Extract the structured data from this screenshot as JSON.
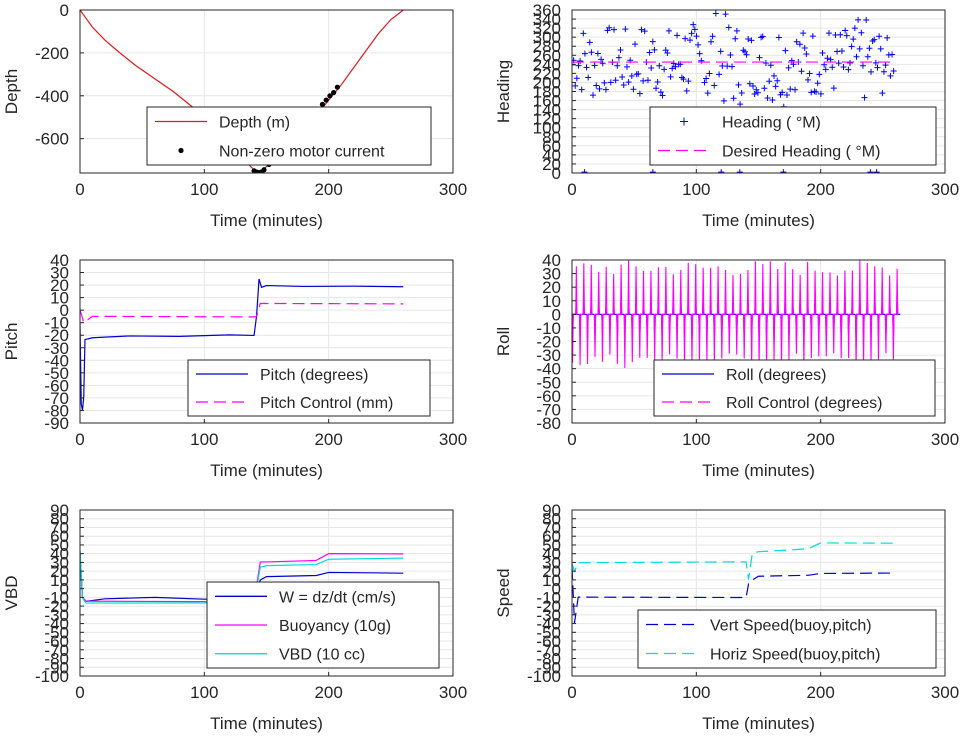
{
  "chart_data": [
    {
      "type": "line",
      "ylabel": "Depth",
      "xlabel": "Time (minutes)",
      "xlim": [
        0,
        300
      ],
      "ylim": [
        -760,
        0
      ],
      "xticks": [
        0,
        100,
        200,
        300
      ],
      "yticks": [
        -600,
        -400,
        -200,
        0
      ],
      "grid": true,
      "legend_position": "bottom-right",
      "series": [
        {
          "name": "Depth (m)",
          "style": "solid",
          "color": "#e31a1c",
          "x": [
            0,
            5,
            10,
            20,
            30,
            45,
            60,
            75,
            90,
            100,
            110,
            120,
            130,
            140,
            143,
            147,
            152,
            160,
            170,
            180,
            190,
            200,
            210,
            220,
            230,
            240,
            250,
            260
          ],
          "y": [
            0,
            -40,
            -80,
            -140,
            -190,
            -260,
            -320,
            -380,
            -450,
            -500,
            -560,
            -630,
            -690,
            -745,
            -755,
            -745,
            -720,
            -680,
            -620,
            -560,
            -495,
            -420,
            -350,
            -270,
            -190,
            -110,
            -45,
            0
          ]
        },
        {
          "name": "Non-zero motor current",
          "style": "dots",
          "color": "#000000",
          "x": [
            140,
            142,
            144,
            146,
            148,
            152,
            195,
            198,
            201,
            204,
            207
          ],
          "y": [
            -750,
            -755,
            -758,
            -755,
            -745,
            -720,
            -440,
            -420,
            -400,
            -385,
            -360
          ]
        }
      ]
    },
    {
      "type": "scatter",
      "ylabel": "Heading",
      "xlabel": "Time (minutes)",
      "xlim": [
        0,
        300
      ],
      "ylim": [
        0,
        360
      ],
      "xticks": [
        0,
        100,
        200,
        300
      ],
      "yticks": [
        0,
        20,
        40,
        60,
        80,
        100,
        120,
        140,
        160,
        180,
        200,
        220,
        240,
        260,
        280,
        300,
        320,
        340,
        360
      ],
      "grid": true,
      "legend_position": "bottom-right",
      "series": [
        {
          "name": "Heading ( °M)",
          "style": "plus",
          "color": "#0000ff",
          "x": [
            0,
            10,
            20,
            30,
            40,
            50,
            60,
            70,
            80,
            90,
            100,
            110,
            120,
            130,
            140,
            150,
            160,
            170,
            180,
            190,
            200,
            210,
            220,
            230,
            240,
            250,
            260
          ],
          "y": [
            240,
            250,
            235,
            255,
            245,
            240,
            250,
            245,
            240,
            255,
            230,
            245,
            250,
            240,
            235,
            250,
            240,
            245,
            255,
            240,
            250,
            245,
            240,
            250,
            245,
            240,
            250
          ],
          "spread": [
            60,
            80,
            80,
            70,
            75,
            80,
            85,
            80,
            80,
            90,
            100,
            120,
            110,
            100,
            80,
            75,
            90,
            100,
            70,
            75,
            80,
            75,
            80,
            90,
            100,
            70,
            30
          ]
        },
        {
          "name": "Desired Heading ( °M)",
          "style": "dash",
          "color": "#ff00ff",
          "x": [
            0,
            260
          ],
          "y": [
            245,
            245
          ]
        }
      ]
    },
    {
      "type": "line",
      "ylabel": "Pitch",
      "xlabel": "Time (minutes)",
      "xlim": [
        0,
        300
      ],
      "ylim": [
        -90,
        40
      ],
      "xticks": [
        0,
        100,
        200,
        300
      ],
      "yticks": [
        -90,
        -80,
        -70,
        -60,
        -50,
        -40,
        -30,
        -20,
        -10,
        0,
        10,
        20,
        30,
        40
      ],
      "grid": true,
      "legend_position": "bottom-right",
      "series": [
        {
          "name": "Pitch (degrees)",
          "style": "solid",
          "color": "#0000cc",
          "x": [
            0,
            1,
            2,
            3,
            4,
            10,
            40,
            80,
            120,
            140,
            142,
            144,
            146,
            150,
            180,
            220,
            260
          ],
          "y": [
            -10,
            -75,
            -80,
            -70,
            -23,
            -22,
            -21,
            -21,
            -20,
            -20,
            -5,
            25,
            18,
            20,
            19,
            19,
            19
          ]
        },
        {
          "name": "Pitch Control (mm)",
          "style": "dash",
          "color": "#ff00ff",
          "x": [
            0,
            3,
            10,
            140,
            142,
            145,
            150,
            260
          ],
          "y": [
            0,
            -10,
            -5,
            -5,
            -5,
            5,
            5,
            5
          ]
        }
      ]
    },
    {
      "type": "line",
      "ylabel": "Roll",
      "xlabel": "Time (minutes)",
      "xlim": [
        0,
        300
      ],
      "ylim": [
        -80,
        40
      ],
      "xticks": [
        0,
        100,
        200,
        300
      ],
      "yticks": [
        -80,
        -70,
        -60,
        -50,
        -40,
        -30,
        -20,
        -10,
        0,
        10,
        20,
        30,
        40
      ],
      "grid": true,
      "legend_position": "bottom-right",
      "series": [
        {
          "name": "Roll (degrees)",
          "style": "solid",
          "color": "#0000cc",
          "x": [
            0,
            260
          ],
          "y": [
            0,
            0
          ],
          "amplitude": 20,
          "period": 6
        },
        {
          "name": "Roll Control (degrees)",
          "style": "dash",
          "color": "#ff00ff",
          "x": [
            0,
            260
          ],
          "y": [
            0,
            0
          ],
          "amplitude": 40,
          "period": 6
        }
      ]
    },
    {
      "type": "line",
      "ylabel": "VBD",
      "xlabel": "Time (minutes)",
      "xlim": [
        0,
        300
      ],
      "ylim": [
        -100,
        90
      ],
      "xticks": [
        0,
        100,
        200,
        300
      ],
      "yticks": [
        -100,
        -90,
        -80,
        -70,
        -60,
        -50,
        -40,
        -30,
        -20,
        -10,
        0,
        10,
        20,
        30,
        40,
        50,
        60,
        70,
        80,
        90
      ],
      "grid": true,
      "legend_position": "bottom-right",
      "series": [
        {
          "name": "W = dz/dt (cm/s)",
          "style": "solid",
          "color": "#0000cc",
          "x": [
            0,
            2,
            4,
            20,
            60,
            100,
            140,
            145,
            150,
            190,
            200,
            260
          ],
          "y": [
            40,
            -10,
            -15,
            -12,
            -10,
            -12,
            -12,
            10,
            14,
            15,
            18,
            17
          ]
        },
        {
          "name": "Buoyancy (10g)",
          "style": "solid",
          "color": "#ff00ff",
          "x": [
            0,
            2,
            5,
            140,
            145,
            150,
            190,
            200,
            260
          ],
          "y": [
            40,
            -10,
            -15,
            -15,
            30,
            30,
            32,
            40,
            40
          ]
        },
        {
          "name": "VBD (10 cc)",
          "style": "solid",
          "color": "#00dddd",
          "x": [
            0,
            2,
            5,
            140,
            145,
            150,
            190,
            200,
            260
          ],
          "y": [
            45,
            -10,
            -17,
            -17,
            25,
            27,
            28,
            34,
            35
          ]
        }
      ]
    },
    {
      "type": "line",
      "ylabel": "Speed",
      "xlabel": "Time (minutes)",
      "xlim": [
        0,
        300
      ],
      "ylim": [
        -100,
        90
      ],
      "xticks": [
        0,
        100,
        200,
        300
      ],
      "yticks": [
        -100,
        -90,
        -80,
        -70,
        -60,
        -50,
        -40,
        -30,
        -20,
        -10,
        0,
        10,
        20,
        30,
        40,
        50,
        60,
        70,
        80,
        90
      ],
      "grid": true,
      "legend_position": "bottom-right",
      "series": [
        {
          "name": "Vert Speed(buoy,pitch)",
          "style": "dash",
          "color": "#0000cc",
          "x": [
            0,
            2,
            5,
            140,
            142,
            145,
            150,
            190,
            200,
            260
          ],
          "y": [
            25,
            -40,
            -10,
            -10,
            5,
            10,
            14,
            15,
            18,
            18
          ]
        },
        {
          "name": "Horiz Speed(buoy,pitch)",
          "style": "dash",
          "color": "#00dddd",
          "x": [
            0,
            2,
            5,
            140,
            142,
            145,
            150,
            190,
            200,
            260
          ],
          "y": [
            28,
            20,
            30,
            30,
            10,
            40,
            42,
            45,
            52,
            52
          ]
        }
      ]
    }
  ]
}
